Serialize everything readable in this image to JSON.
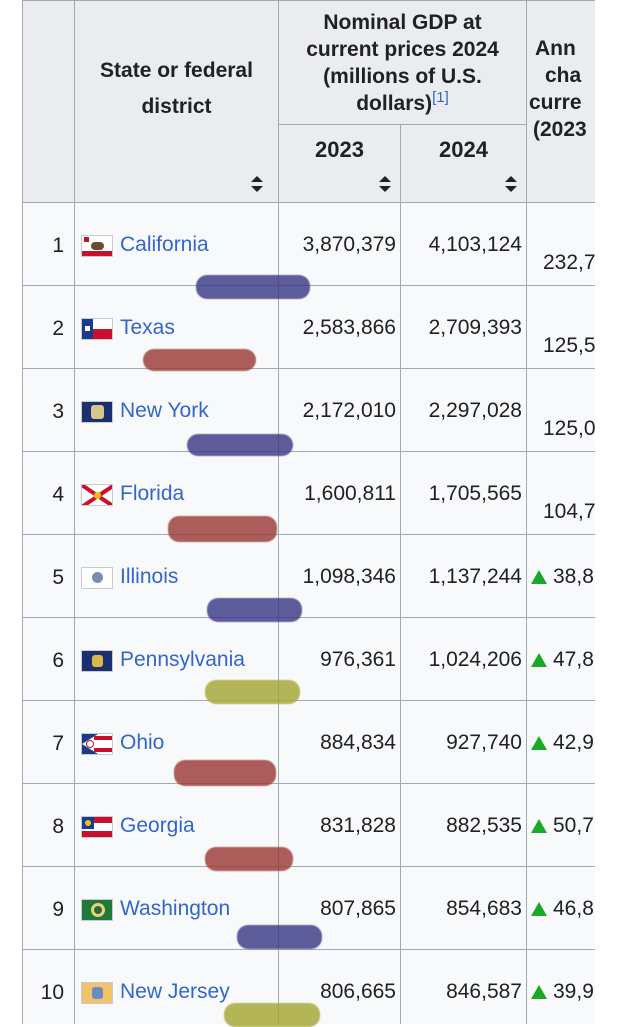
{
  "table": {
    "headers": {
      "rank": "",
      "state": "State or federal district",
      "gdp_group": "Nominal GDP at current prices 2024 (millions of U.S. dollars)",
      "gdp_group_ref": "[1]",
      "year_2023": "2023",
      "year_2024": "2024",
      "annual_change_partial": "Ann\ncha\ncurre\n(2023"
    },
    "rows": [
      {
        "rank": "1",
        "state": "California",
        "flag": "california-flag",
        "gdp_2023": "3,870,379",
        "gdp_2024": "4,103,124",
        "annual_change": "232,7",
        "change_up_arrow": false
      },
      {
        "rank": "2",
        "state": "Texas",
        "flag": "texas-flag",
        "gdp_2023": "2,583,866",
        "gdp_2024": "2,709,393",
        "annual_change": "125,5",
        "change_up_arrow": false
      },
      {
        "rank": "3",
        "state": "New York",
        "flag": "new-york-flag",
        "gdp_2023": "2,172,010",
        "gdp_2024": "2,297,028",
        "annual_change": "125,0",
        "change_up_arrow": false
      },
      {
        "rank": "4",
        "state": "Florida",
        "flag": "florida-flag",
        "gdp_2023": "1,600,811",
        "gdp_2024": "1,705,565",
        "annual_change": "104,7",
        "change_up_arrow": false
      },
      {
        "rank": "5",
        "state": "Illinois",
        "flag": "illinois-flag",
        "gdp_2023": "1,098,346",
        "gdp_2024": "1,137,244",
        "annual_change": "38,8",
        "change_up_arrow": true
      },
      {
        "rank": "6",
        "state": "Pennsylvania",
        "flag": "pennsylvania-flag",
        "gdp_2023": "976,361",
        "gdp_2024": "1,024,206",
        "annual_change": "47,8",
        "change_up_arrow": true
      },
      {
        "rank": "7",
        "state": "Ohio",
        "flag": "ohio-flag",
        "gdp_2023": "884,834",
        "gdp_2024": "927,740",
        "annual_change": "42,9",
        "change_up_arrow": true
      },
      {
        "rank": "8",
        "state": "Georgia",
        "flag": "georgia-flag",
        "gdp_2023": "831,828",
        "gdp_2024": "882,535",
        "annual_change": "50,7",
        "change_up_arrow": true
      },
      {
        "rank": "9",
        "state": "Washington",
        "flag": "washington-flag",
        "gdp_2023": "807,865",
        "gdp_2024": "854,683",
        "annual_change": "46,8",
        "change_up_arrow": true
      },
      {
        "rank": "10",
        "state": "New Jersey",
        "flag": "new-jersey-flag",
        "gdp_2023": "806,665",
        "gdp_2024": "846,587",
        "annual_change": "39,9",
        "change_up_arrow": true
      }
    ]
  },
  "colors": {
    "link": "#3366cc",
    "header_bg": "#eaecf0",
    "cell_bg": "#f8f9fa",
    "border": "#a2a9b1",
    "up_arrow": "#1aa827",
    "marker_navy": "#3b3a86",
    "marker_red": "#9c3b36",
    "marker_olive": "#a6a733"
  }
}
